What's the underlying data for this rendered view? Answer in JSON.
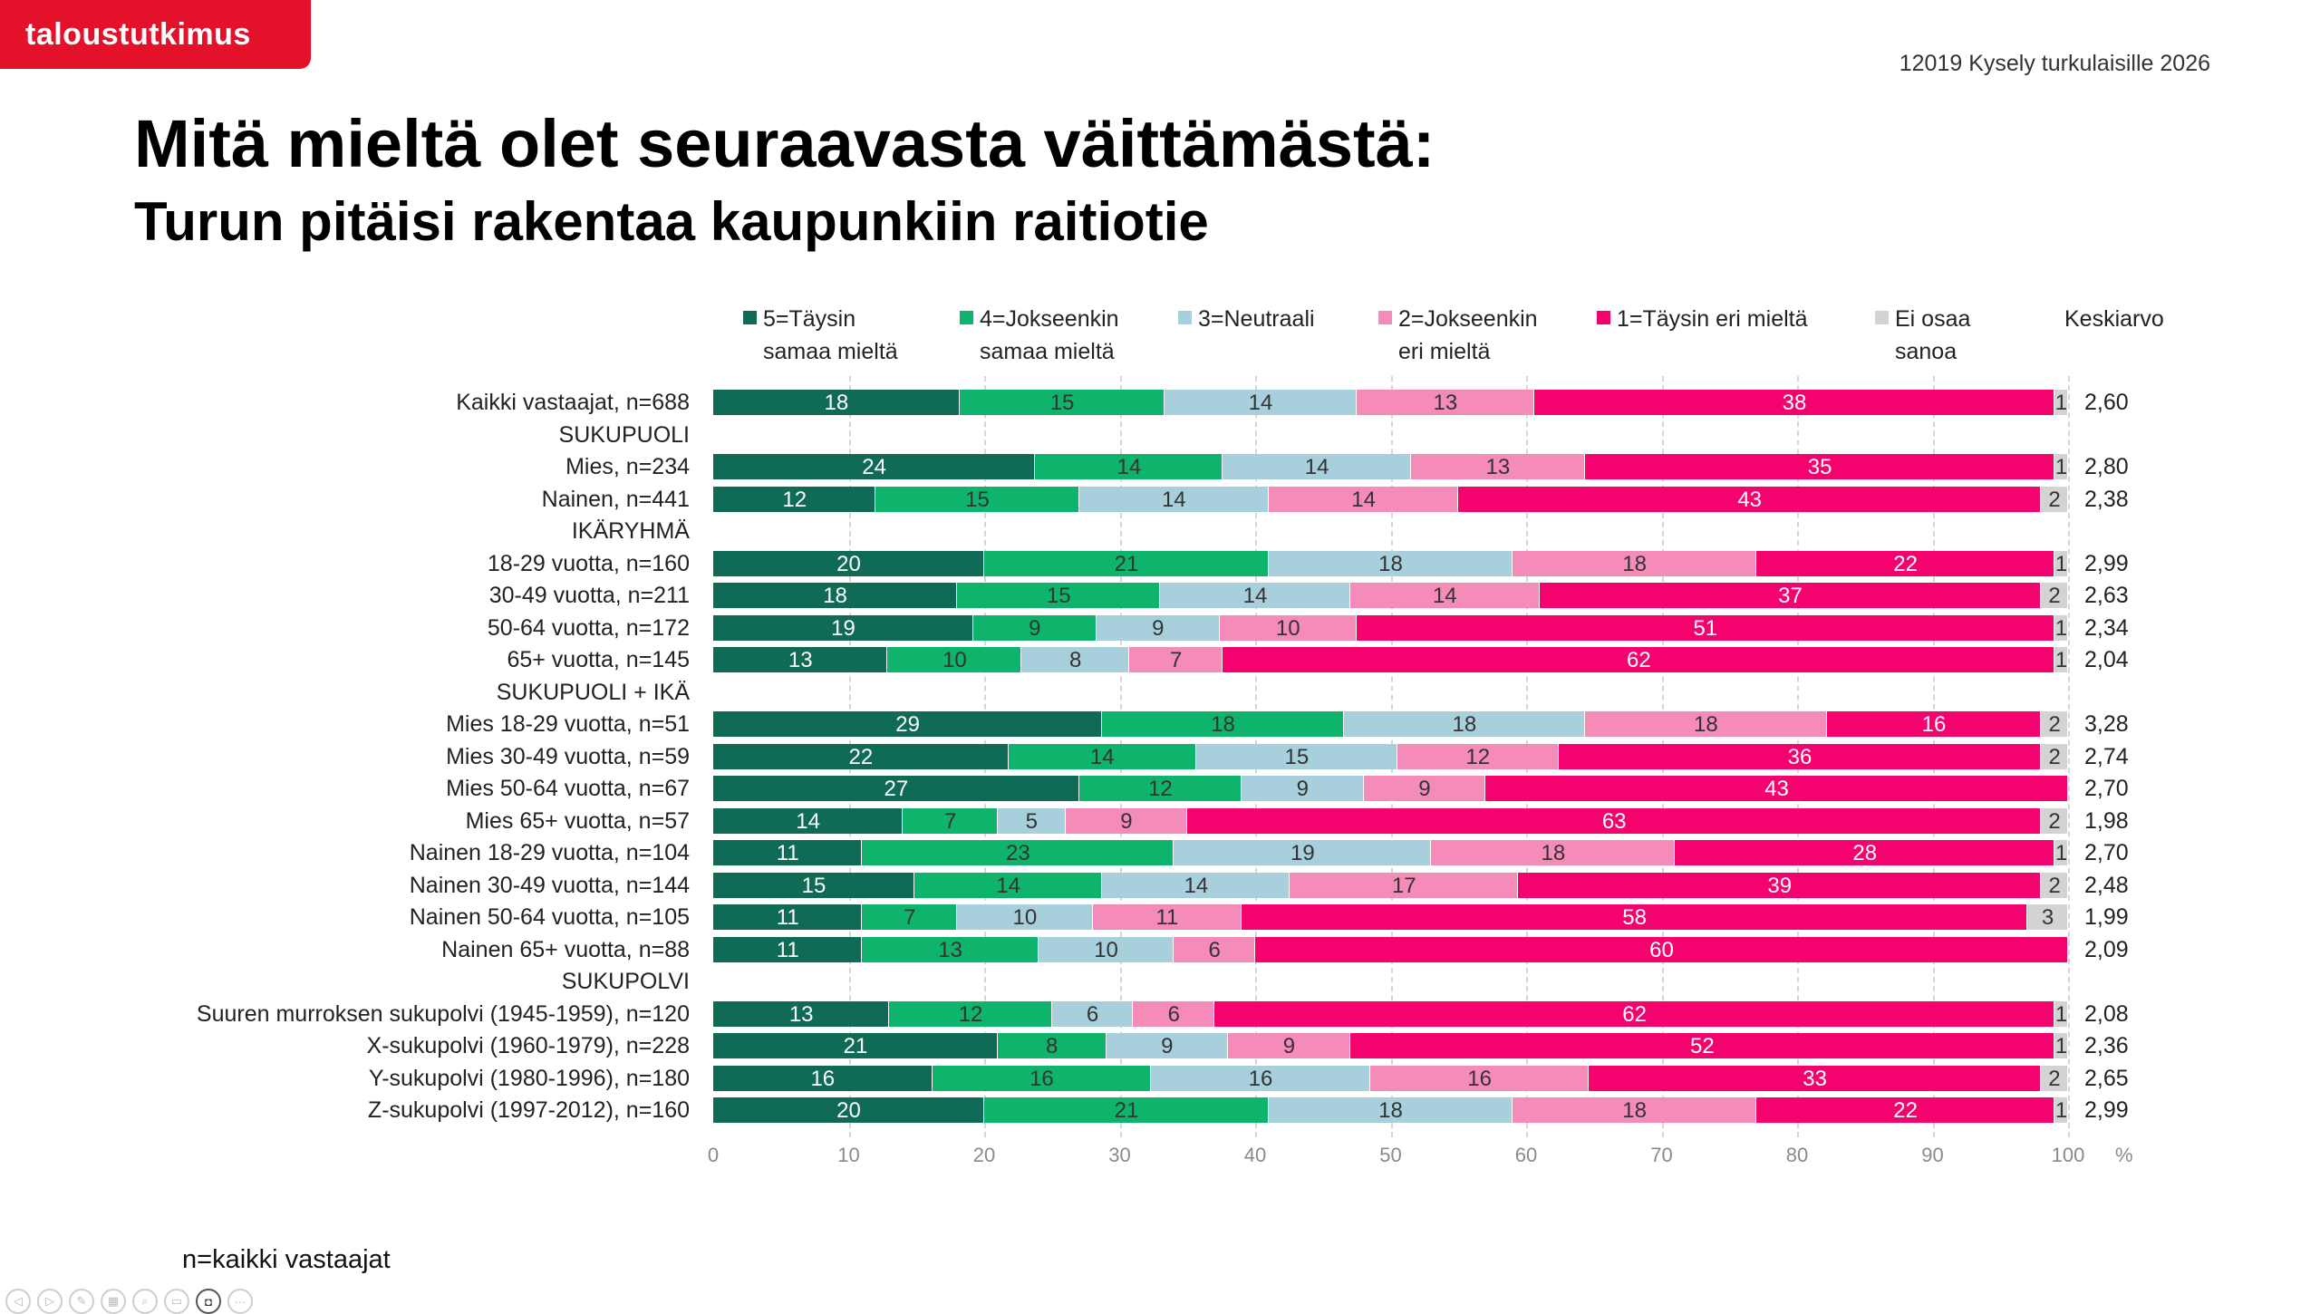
{
  "header": {
    "logo": "taloustutkimus",
    "survey": "12019 Kysely turkulaisille 2026",
    "title": "Mitä mieltä olet seuraavasta väittämästä:",
    "subtitle": "Turun pitäisi rakentaa kaupunkiin raitiotie"
  },
  "footnote": "n=kaikki vastaajat",
  "toolbar": [
    "prev-icon",
    "next-icon",
    "pen-icon",
    "slides-icon",
    "zoom-icon",
    "subtitles-icon",
    "camera-icon",
    "more-icon"
  ],
  "chart_data": {
    "type": "bar",
    "orientation": "horizontal",
    "stacked": true,
    "xlim": [
      0,
      100
    ],
    "xticks": [
      "0",
      "10",
      "20",
      "30",
      "40",
      "50",
      "60",
      "70",
      "80",
      "90",
      "100"
    ],
    "xunit": "%",
    "grid": true,
    "legend_position": "top",
    "series": [
      {
        "name": "5=Täysin\nsamaa mieltä",
        "color": "#0f6b55"
      },
      {
        "name": "4=Jokseenkin\nsamaa mieltä",
        "color": "#0fb46c"
      },
      {
        "name": "3=Neutraali",
        "color": "#a8d0dc"
      },
      {
        "name": "2=Jokseenkin\neri mieltä",
        "color": "#f48bb8"
      },
      {
        "name": "1=Täysin eri mieltä",
        "color": "#f4036f"
      },
      {
        "name": "Ei osaa\nsanoa",
        "color": "#d3d3d3"
      }
    ],
    "mean_header": "Keskiarvo",
    "rows": [
      {
        "label": "Kaikki vastaajat, n=688",
        "values": [
          18,
          15,
          14,
          13,
          38,
          1
        ],
        "mean": "2,60"
      },
      {
        "label": "SUKUPUOLI",
        "header": true
      },
      {
        "label": "Mies, n=234",
        "values": [
          24,
          14,
          14,
          13,
          35,
          1
        ],
        "mean": "2,80"
      },
      {
        "label": "Nainen, n=441",
        "values": [
          12,
          15,
          14,
          14,
          43,
          2
        ],
        "mean": "2,38"
      },
      {
        "label": "IKÄRYHMÄ",
        "header": true
      },
      {
        "label": "18-29 vuotta, n=160",
        "values": [
          20,
          21,
          18,
          18,
          22,
          1
        ],
        "mean": "2,99"
      },
      {
        "label": "30-49 vuotta, n=211",
        "values": [
          18,
          15,
          14,
          14,
          37,
          2
        ],
        "mean": "2,63"
      },
      {
        "label": "50-64 vuotta, n=172",
        "values": [
          19,
          9,
          9,
          10,
          51,
          1
        ],
        "mean": "2,34"
      },
      {
        "label": "65+ vuotta, n=145",
        "values": [
          13,
          10,
          8,
          7,
          62,
          1
        ],
        "mean": "2,04"
      },
      {
        "label": "SUKUPUOLI + IKÄ",
        "header": true
      },
      {
        "label": "Mies 18-29 vuotta, n=51",
        "values": [
          29,
          18,
          18,
          18,
          16,
          2
        ],
        "mean": "3,28"
      },
      {
        "label": "Mies 30-49 vuotta, n=59",
        "values": [
          22,
          14,
          15,
          12,
          36,
          2
        ],
        "mean": "2,74"
      },
      {
        "label": "Mies 50-64 vuotta, n=67",
        "values": [
          27,
          12,
          9,
          9,
          43,
          null
        ],
        "mean": "2,70"
      },
      {
        "label": "Mies 65+ vuotta, n=57",
        "values": [
          14,
          7,
          5,
          9,
          63,
          2
        ],
        "mean": "1,98"
      },
      {
        "label": "Nainen 18-29 vuotta, n=104",
        "values": [
          11,
          23,
          19,
          18,
          28,
          1
        ],
        "mean": "2,70"
      },
      {
        "label": "Nainen 30-49 vuotta, n=144",
        "values": [
          15,
          14,
          14,
          17,
          39,
          2
        ],
        "mean": "2,48"
      },
      {
        "label": "Nainen 50-64 vuotta, n=105",
        "values": [
          11,
          7,
          10,
          11,
          58,
          3
        ],
        "mean": "1,99"
      },
      {
        "label": "Nainen 65+ vuotta, n=88",
        "values": [
          11,
          13,
          10,
          6,
          60,
          null
        ],
        "mean": "2,09"
      },
      {
        "label": "SUKUPOLVI",
        "header": true
      },
      {
        "label": "Suuren murroksen sukupolvi (1945-1959), n=120",
        "values": [
          13,
          12,
          6,
          6,
          62,
          1
        ],
        "mean": "2,08"
      },
      {
        "label": "X-sukupolvi (1960-1979), n=228",
        "values": [
          21,
          8,
          9,
          9,
          52,
          1
        ],
        "mean": "2,36"
      },
      {
        "label": "Y-sukupolvi (1980-1996), n=180",
        "values": [
          16,
          16,
          16,
          16,
          33,
          2
        ],
        "mean": "2,65"
      },
      {
        "label": "Z-sukupolvi (1997-2012), n=160",
        "values": [
          20,
          21,
          18,
          18,
          22,
          1
        ],
        "mean": "2,99"
      }
    ]
  }
}
